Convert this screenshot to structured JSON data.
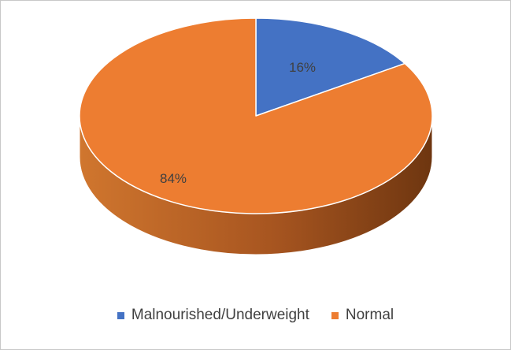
{
  "chart_data": {
    "type": "pie",
    "style": "3d-pie",
    "slices": [
      {
        "label": "Malnourished/Underweight",
        "value": 16,
        "display": "16%",
        "color": "#4472C4"
      },
      {
        "label": "Normal",
        "value": 84,
        "display": "84%",
        "color": "#ED7D31"
      }
    ],
    "legend_position": "bottom"
  }
}
